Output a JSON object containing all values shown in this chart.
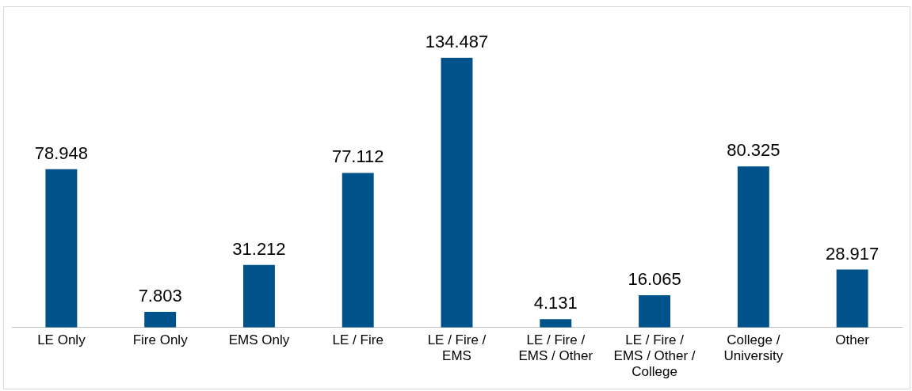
{
  "chart_data": {
    "type": "bar",
    "categories": [
      "LE Only",
      "Fire Only",
      "EMS Only",
      "LE / Fire",
      "LE / Fire / EMS",
      "LE / Fire / EMS / Other",
      "LE / Fire / EMS / Other / College",
      "College / University",
      "Other"
    ],
    "values": [
      78.948,
      7.803,
      31.212,
      77.112,
      134.487,
      4.131,
      16.065,
      80.325,
      28.917
    ],
    "color": "#00538a",
    "data_labels": true,
    "grid": false,
    "legend": false
  }
}
